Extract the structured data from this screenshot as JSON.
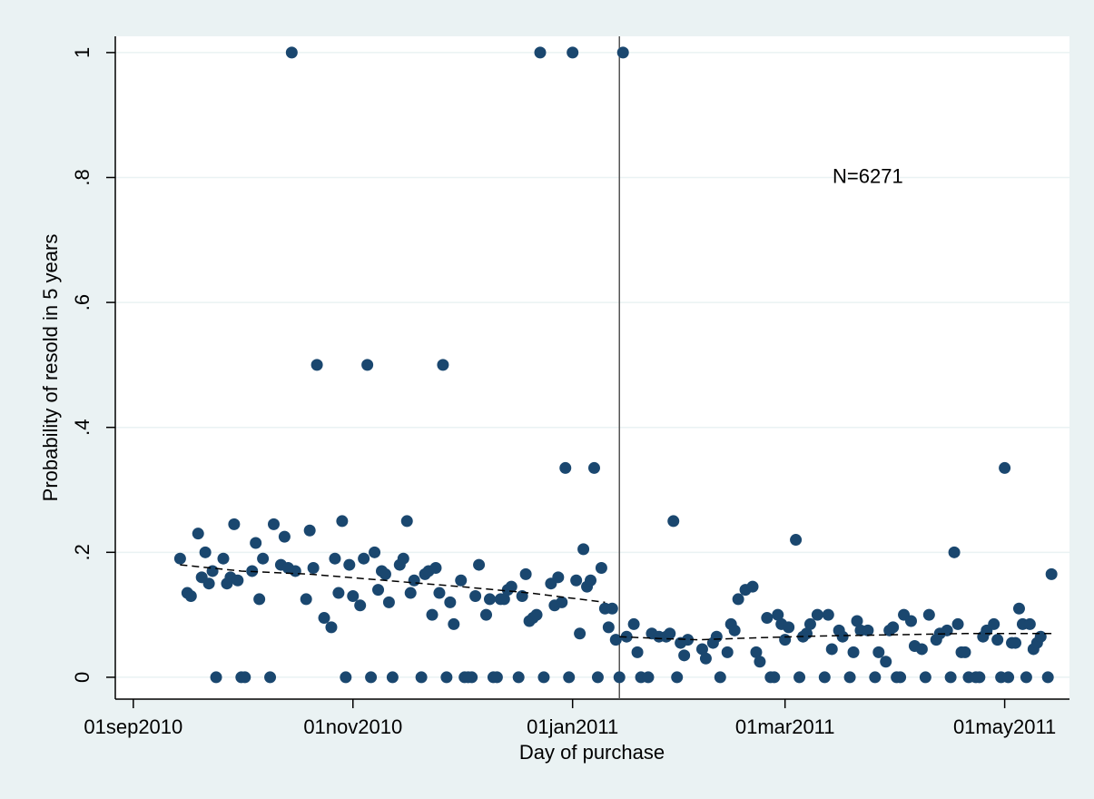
{
  "chart_data": {
    "type": "scatter",
    "xlabel": "Day of purchase",
    "ylabel": "Probability of resold in 5 years",
    "xlim": [
      "2010-08-27",
      "2011-05-19"
    ],
    "ylim": [
      -0.035,
      1.026
    ],
    "xticks": [
      {
        "value": "2010-09-01",
        "label": "01sep2010"
      },
      {
        "value": "2010-11-01",
        "label": "01nov2010"
      },
      {
        "value": "2011-01-01",
        "label": "01jan2011"
      },
      {
        "value": "2011-03-01",
        "label": "01mar2011"
      },
      {
        "value": "2011-05-01",
        "label": "01may2011"
      }
    ],
    "yticks": [
      0,
      {
        "value": 0.2,
        "label": ".2"
      },
      {
        "value": 0.4,
        "label": ".4"
      },
      {
        "value": 0.6,
        "label": ".6"
      },
      {
        "value": 0.8,
        "label": ".8"
      },
      1
    ],
    "grid": true,
    "vline": "2011-01-14",
    "annotation": {
      "text": "N=6271",
      "x": "2011-03-24",
      "y": 0.8
    },
    "series": [
      {
        "kind": "scatter",
        "color": "#1a476f",
        "x": [
          "2010-09-14",
          "2010-09-16",
          "2010-09-17",
          "2010-09-19",
          "2010-09-20",
          "2010-09-21",
          "2010-09-22",
          "2010-09-23",
          "2010-09-24",
          "2010-09-26",
          "2010-09-27",
          "2010-09-28",
          "2010-09-29",
          "2010-09-30",
          "2010-10-01",
          "2010-10-02",
          "2010-10-04",
          "2010-10-05",
          "2010-10-06",
          "2010-10-07",
          "2010-10-09",
          "2010-10-10",
          "2010-10-12",
          "2010-10-13",
          "2010-10-14",
          "2010-10-15",
          "2010-10-16",
          "2010-10-19",
          "2010-10-20",
          "2010-10-21",
          "2010-10-22",
          "2010-10-24",
          "2010-10-26",
          "2010-10-27",
          "2010-10-28",
          "2010-10-29",
          "2010-10-30",
          "2010-10-31",
          "2010-11-01",
          "2010-11-03",
          "2010-11-04",
          "2010-11-05",
          "2010-11-06",
          "2010-11-07",
          "2010-11-08",
          "2010-11-09",
          "2010-11-10",
          "2010-11-11",
          "2010-11-12",
          "2010-11-14",
          "2010-11-15",
          "2010-11-16",
          "2010-11-17",
          "2010-11-18",
          "2010-11-20",
          "2010-11-21",
          "2010-11-22",
          "2010-11-23",
          "2010-11-24",
          "2010-11-25",
          "2010-11-26",
          "2010-11-27",
          "2010-11-28",
          "2010-11-29",
          "2010-12-01",
          "2010-12-02",
          "2010-12-03",
          "2010-12-04",
          "2010-12-05",
          "2010-12-06",
          "2010-12-08",
          "2010-12-09",
          "2010-12-10",
          "2010-12-11",
          "2010-12-12",
          "2010-12-13",
          "2010-12-14",
          "2010-12-15",
          "2010-12-17",
          "2010-12-18",
          "2010-12-19",
          "2010-12-20",
          "2010-12-21",
          "2010-12-22",
          "2010-12-23",
          "2010-12-24",
          "2010-12-26",
          "2010-12-27",
          "2010-12-28",
          "2010-12-29",
          "2010-12-30",
          "2010-12-31",
          "2011-01-01",
          "2011-01-02",
          "2011-01-03",
          "2011-01-04",
          "2011-01-05",
          "2011-01-06",
          "2011-01-07",
          "2011-01-08",
          "2011-01-09",
          "2011-01-10",
          "2011-01-11",
          "2011-01-12",
          "2011-01-13",
          "2011-01-14",
          "2011-01-15",
          "2011-01-16",
          "2011-01-18",
          "2011-01-19",
          "2011-01-20",
          "2011-01-22",
          "2011-01-23",
          "2011-01-25",
          "2011-01-27",
          "2011-01-28",
          "2011-01-29",
          "2011-01-30",
          "2011-01-31",
          "2011-02-01",
          "2011-02-02",
          "2011-02-06",
          "2011-02-07",
          "2011-02-09",
          "2011-02-10",
          "2011-02-11",
          "2011-02-13",
          "2011-02-14",
          "2011-02-15",
          "2011-02-16",
          "2011-02-18",
          "2011-02-20",
          "2011-02-21",
          "2011-02-22",
          "2011-02-24",
          "2011-02-25",
          "2011-02-26",
          "2011-02-27",
          "2011-02-28",
          "2011-03-01",
          "2011-03-02",
          "2011-03-04",
          "2011-03-05",
          "2011-03-06",
          "2011-03-07",
          "2011-03-08",
          "2011-03-10",
          "2011-03-12",
          "2011-03-13",
          "2011-03-14",
          "2011-03-16",
          "2011-03-17",
          "2011-03-19",
          "2011-03-20",
          "2011-03-21",
          "2011-03-22",
          "2011-03-24",
          "2011-03-26",
          "2011-03-27",
          "2011-03-29",
          "2011-03-30",
          "2011-03-31",
          "2011-04-01",
          "2011-04-02",
          "2011-04-03",
          "2011-04-05",
          "2011-04-06",
          "2011-04-08",
          "2011-04-09",
          "2011-04-10",
          "2011-04-12",
          "2011-04-13",
          "2011-04-15",
          "2011-04-16",
          "2011-04-17",
          "2011-04-18",
          "2011-04-19",
          "2011-04-20",
          "2011-04-21",
          "2011-04-23",
          "2011-04-24",
          "2011-04-25",
          "2011-04-26",
          "2011-04-28",
          "2011-04-29",
          "2011-04-30",
          "2011-05-01",
          "2011-05-02",
          "2011-05-03",
          "2011-05-04",
          "2011-05-05",
          "2011-05-06",
          "2011-05-07",
          "2011-05-08",
          "2011-05-09",
          "2011-05-10",
          "2011-05-11",
          "2011-05-13",
          "2011-05-14"
        ],
        "values": [
          0.19,
          0.135,
          0.13,
          0.23,
          0.16,
          0.2,
          0.15,
          0.17,
          0,
          0.19,
          0.15,
          0.16,
          0.245,
          0.155,
          0,
          0,
          0.17,
          0.215,
          0.125,
          0.19,
          0,
          0.245,
          0.18,
          0.225,
          0.175,
          1,
          0.17,
          0.125,
          0.235,
          0.175,
          0.5,
          0.095,
          0.08,
          0.19,
          0.135,
          0.25,
          0,
          0.18,
          0.13,
          0.115,
          0.19,
          0.5,
          0,
          0.2,
          0.14,
          0.17,
          0.165,
          0.12,
          0,
          0.18,
          0.19,
          0.25,
          0.135,
          0.155,
          0,
          0.165,
          0.17,
          0.1,
          0.175,
          0.135,
          0.5,
          0,
          0.12,
          0.085,
          0.155,
          0,
          0,
          0,
          0.13,
          0.18,
          0.1,
          0.125,
          0,
          0,
          0.125,
          0.125,
          0.14,
          0.145,
          0,
          0.13,
          0.165,
          0.09,
          0.095,
          0.1,
          1,
          0,
          0.15,
          0.115,
          0.16,
          0.12,
          0.335,
          0,
          1,
          0.155,
          0.07,
          0.205,
          0.145,
          0.155,
          0.335,
          0,
          0.175,
          0.11,
          0.08,
          0.11,
          0.06,
          0,
          1,
          0.065,
          0.085,
          0.04,
          0,
          0,
          0.07,
          0.065,
          0.065,
          0.07,
          0.25,
          0,
          0.055,
          0.035,
          0.06,
          0.045,
          0.03,
          0.055,
          0.065,
          0,
          0.04,
          0.085,
          0.075,
          0.125,
          0.14,
          0.145,
          0.04,
          0.025,
          0.095,
          0,
          0,
          0.1,
          0.085,
          0.06,
          0.08,
          0.22,
          0,
          0.065,
          0.07,
          0.085,
          0.1,
          0,
          0.1,
          0.045,
          0.075,
          0.065,
          0,
          0.04,
          0.09,
          0.075,
          0.075,
          0,
          0.04,
          0.025,
          0.075,
          0.08,
          0,
          0,
          0.1,
          0.09,
          0.05,
          0.045,
          0,
          0.1,
          0.06,
          0.07,
          0.075,
          0,
          0.2,
          0.085,
          0.04,
          0.04,
          0,
          0,
          0,
          0.065,
          0.075,
          0.085,
          0.06,
          0,
          0.335,
          0,
          0.055,
          0.055,
          0.11,
          0.085,
          0,
          0.085,
          0.045,
          0.055,
          0.065,
          0,
          0.165
        ]
      },
      {
        "kind": "line",
        "color": "#000000",
        "x": [
          "2010-09-14",
          "2010-10-01",
          "2010-10-20",
          "2010-11-10",
          "2010-12-01",
          "2010-12-20",
          "2011-01-10"
        ],
        "values": [
          0.18,
          0.17,
          0.165,
          0.155,
          0.145,
          0.135,
          0.12
        ]
      },
      {
        "kind": "line",
        "color": "#000000",
        "x": [
          "2011-01-14",
          "2011-01-25",
          "2011-02-05",
          "2011-02-20",
          "2011-03-10",
          "2011-03-31",
          "2011-04-20",
          "2011-05-14"
        ],
        "values": [
          0.065,
          0.062,
          0.06,
          0.063,
          0.066,
          0.068,
          0.07,
          0.07
        ]
      }
    ]
  }
}
